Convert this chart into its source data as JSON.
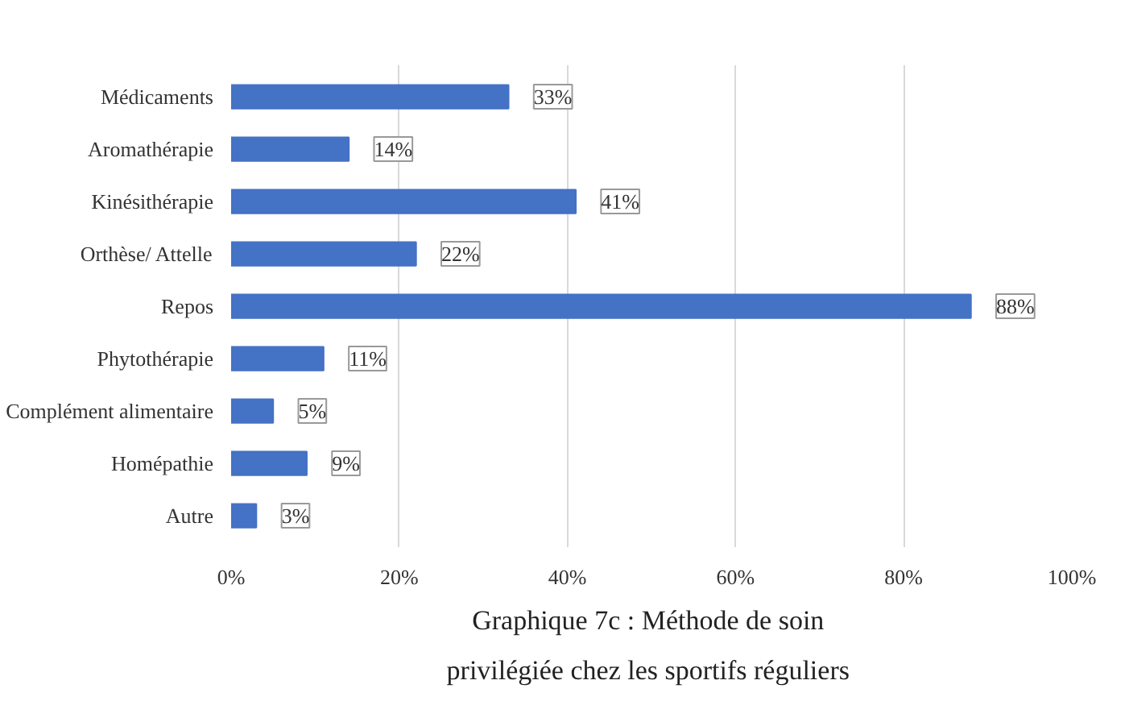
{
  "chart_data": {
    "type": "bar",
    "orientation": "horizontal",
    "title": "Graphique  7c : Méthode de soin\nprivilégiée  chez les sportifs réguliers",
    "categories": [
      "Médicaments",
      "Aromathérapie",
      "Kinésithérapie",
      "Orthèse/ Attelle",
      "Repos",
      "Phytothérapie",
      "Complément alimentaire",
      "Homépathie",
      "Autre"
    ],
    "values": [
      33,
      14,
      41,
      22,
      88,
      11,
      5,
      9,
      3
    ],
    "value_labels": [
      "33%",
      "14%",
      "41%",
      "22%",
      "88%",
      "11%",
      "5%",
      "9%",
      "3%"
    ],
    "color": "#4472c4",
    "xlim": [
      0,
      100
    ],
    "xticks": [
      {
        "value": 0,
        "label": "0%"
      },
      {
        "value": 20,
        "label": "20%"
      },
      {
        "value": 40,
        "label": "40%"
      },
      {
        "value": 60,
        "label": "60%"
      },
      {
        "value": 80,
        "label": "80%"
      },
      {
        "value": 100,
        "label": "100%"
      }
    ],
    "grid": "x"
  }
}
